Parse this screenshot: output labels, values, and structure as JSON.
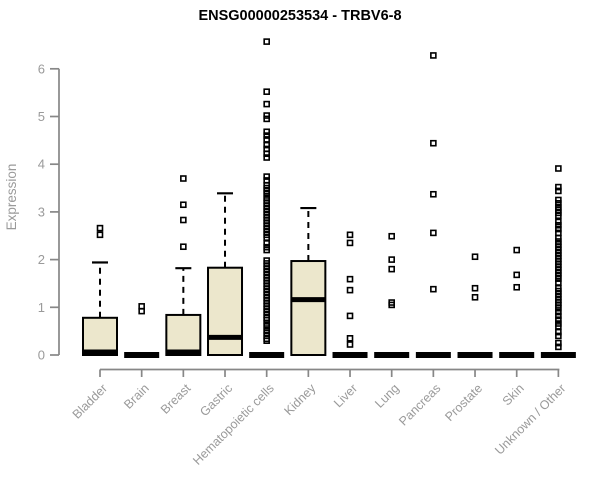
{
  "chart_data": {
    "type": "boxplot",
    "title": "ENSG00000253534 - TRBV6-8",
    "xlabel": "",
    "ylabel": "Expression",
    "ylim": [
      0,
      6.6
    ],
    "yticks": [
      0,
      1,
      2,
      3,
      4,
      5,
      6
    ],
    "grid": false,
    "legend": "none",
    "categories": [
      "Bladder",
      "Brain",
      "Breast",
      "Gastric",
      "Hematopoietic cells",
      "Kidney",
      "Liver",
      "Lung",
      "Pancreas",
      "Prostate",
      "Skin",
      "Unknown / Other"
    ],
    "series": [
      {
        "name": "Bladder",
        "q1": 0,
        "median": 0,
        "q3": 0.78,
        "whisker_low": 0,
        "whisker_high": 1.94,
        "outliers": [
          2.52,
          2.66
        ]
      },
      {
        "name": "Brain",
        "q1": 0,
        "median": 0,
        "q3": 0,
        "whisker_low": 0,
        "whisker_high": 0,
        "outliers": [
          0.92,
          1.02
        ]
      },
      {
        "name": "Breast",
        "q1": 0,
        "median": 0,
        "q3": 0.84,
        "whisker_low": 0,
        "whisker_high": 1.82,
        "outliers": [
          2.27,
          2.83,
          3.15,
          3.7
        ]
      },
      {
        "name": "Gastric",
        "q1": 0,
        "median": 0.37,
        "q3": 1.83,
        "whisker_low": 0,
        "whisker_high": 3.39,
        "outliers": []
      },
      {
        "name": "Hematopoietic cells",
        "q1": 0,
        "median": 0,
        "q3": 0,
        "whisker_low": 0,
        "whisker_high": 0,
        "outliers": [
          6.57,
          5.52,
          5.26,
          5.02,
          4.95,
          4.68,
          4.6,
          4.52,
          4.4,
          4.32,
          4.22,
          4.14,
          3.74,
          3.66,
          3.56,
          3.5,
          3.44,
          3.38,
          3.3,
          3.24,
          3.18,
          3.12,
          3.06,
          3.0,
          2.94,
          2.88,
          2.82,
          2.76,
          2.7,
          2.64,
          2.58,
          2.52,
          2.46,
          2.34,
          2.26,
          2.2,
          1.98,
          1.92,
          1.86,
          1.8,
          1.74,
          1.68,
          1.62,
          1.56,
          1.5,
          1.44,
          1.38,
          1.32,
          1.26,
          1.2,
          1.14,
          1.08,
          1.02,
          0.96,
          0.9,
          0.84,
          0.78,
          0.73,
          0.66,
          0.6,
          0.52,
          0.46,
          0.4,
          0.34,
          0.3
        ]
      },
      {
        "name": "Kidney",
        "q1": 0,
        "median": 1.16,
        "q3": 1.97,
        "whisker_low": 0,
        "whisker_high": 3.08,
        "outliers": []
      },
      {
        "name": "Liver",
        "q1": 0,
        "median": 0,
        "q3": 0,
        "whisker_low": 0,
        "whisker_high": 0,
        "outliers": [
          0.22,
          0.35,
          0.82,
          1.36,
          1.59,
          2.35,
          2.52
        ]
      },
      {
        "name": "Lung",
        "q1": 0,
        "median": 0,
        "q3": 0,
        "whisker_low": 0,
        "whisker_high": 0,
        "outliers": [
          1.05,
          1.1,
          1.8,
          2.0,
          2.49
        ]
      },
      {
        "name": "Pancreas",
        "q1": 0,
        "median": 0,
        "q3": 0,
        "whisker_low": 0,
        "whisker_high": 0,
        "outliers": [
          1.38,
          2.56,
          3.37,
          4.44,
          6.28
        ]
      },
      {
        "name": "Prostate",
        "q1": 0,
        "median": 0,
        "q3": 0,
        "whisker_low": 0,
        "whisker_high": 0,
        "outliers": [
          1.21,
          1.4,
          2.06
        ]
      },
      {
        "name": "Skin",
        "q1": 0,
        "median": 0,
        "q3": 0,
        "whisker_low": 0,
        "whisker_high": 0,
        "outliers": [
          1.42,
          1.68,
          2.2
        ]
      },
      {
        "name": "Unknown / Other",
        "q1": 0,
        "median": 0,
        "q3": 0,
        "whisker_low": 0,
        "whisker_high": 0,
        "outliers": [
          3.91,
          3.52,
          3.44,
          3.25,
          3.18,
          3.1,
          3.04,
          2.98,
          2.92,
          2.79,
          2.72,
          2.64,
          2.56,
          2.45,
          2.38,
          2.32,
          2.26,
          2.2,
          2.14,
          2.08,
          2.02,
          1.96,
          1.9,
          1.84,
          1.78,
          1.72,
          1.66,
          1.6,
          1.52,
          1.4,
          1.34,
          1.28,
          1.22,
          1.16,
          1.1,
          1.04,
          0.98,
          0.9,
          0.82,
          0.74,
          0.66,
          0.6,
          0.48,
          0.4,
          0.25,
          0.17
        ]
      }
    ],
    "colors": {
      "title": "#000000",
      "box_fill": "#ece7cc",
      "box_stroke": "#000000",
      "median": "#000000",
      "axis": "#878787",
      "tick_label": "#9a9a9a",
      "outlier": "#000000",
      "background": "#ffffff"
    }
  }
}
